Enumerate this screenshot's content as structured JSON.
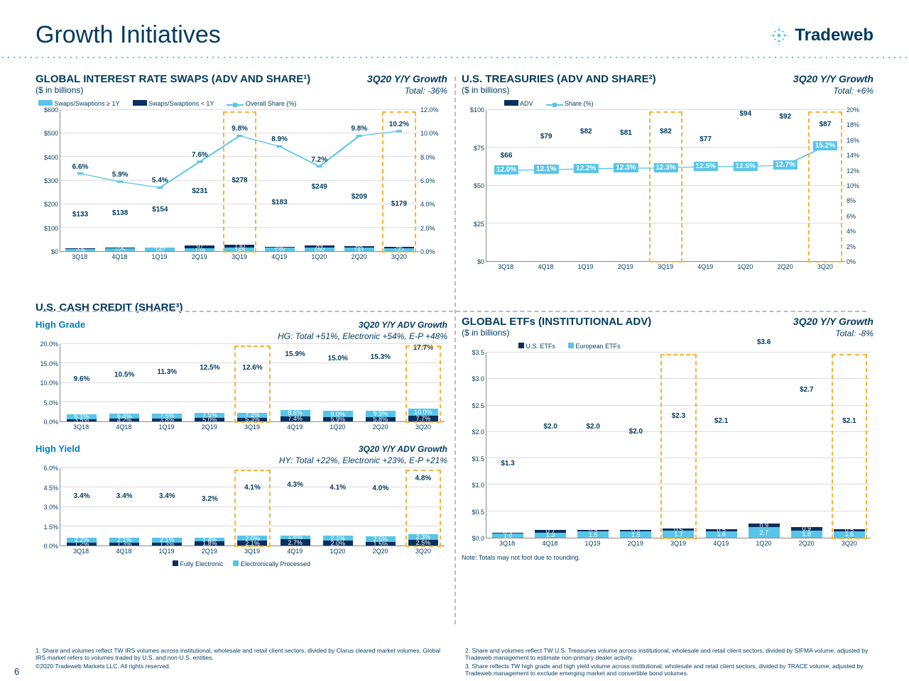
{
  "slide": {
    "title": "Growth Initiatives",
    "logo_text": "Tradeweb",
    "page_number": "6",
    "copyright": "©2020 Tradeweb Markets LLC. All rights reserved."
  },
  "colors": {
    "navy": "#0a2f5c",
    "cyan": "#58c5e8",
    "cyan_dark": "#2da8cc",
    "orange": "#f9b233",
    "text": "#003a5d"
  },
  "irs": {
    "title": "GLOBAL INTEREST RATE SWAPS (ADV AND SHARE¹)",
    "unit": "($ in billions)",
    "growth_label": "3Q20 Y/Y Growth",
    "growth_value": "Total: -36%",
    "legend": {
      "a": "Swaps/Swaptions ≥ 1Y",
      "b": "Swaps/Swaptions < 1Y",
      "c": "Overall Share (%)"
    },
    "yl": {
      "max": 600,
      "step": 100,
      "fmt": "$"
    },
    "yr": {
      "max": 12,
      "step": 2,
      "suffix": "%",
      "decimals": 1
    },
    "periods": [
      "3Q18",
      "4Q18",
      "1Q19",
      "2Q19",
      "3Q19",
      "4Q19",
      "1Q20",
      "2Q20",
      "3Q20"
    ],
    "cyan": [
      104,
      125,
      142,
      134,
      148,
      139,
      160,
      141,
      122
    ],
    "navy": [
      29,
      13,
      11,
      97,
      130,
      44,
      89,
      68,
      56
    ],
    "totals": [
      "$133",
      "$138",
      "$154",
      "$231",
      "$278",
      "$183",
      "$249",
      "$209",
      "$179"
    ],
    "share": [
      6.6,
      5.9,
      5.4,
      7.6,
      9.8,
      8.9,
      7.2,
      9.8,
      10.2
    ],
    "highlights": [
      4,
      8
    ]
  },
  "ust": {
    "title": "U.S. TREASURIES (ADV AND SHARE²)",
    "unit": "($ in billions)",
    "growth_label": "3Q20 Y/Y Growth",
    "growth_value": "Total: +6%",
    "legend": {
      "a": "ADV",
      "b": "Share (%)"
    },
    "yl": {
      "max": 100,
      "step": 25,
      "fmt": "$"
    },
    "yr": {
      "max": 20,
      "step": 2,
      "suffix": "%"
    },
    "periods": [
      "3Q18",
      "4Q18",
      "1Q19",
      "2Q19",
      "3Q19",
      "4Q19",
      "1Q20",
      "2Q20",
      "3Q20"
    ],
    "adv": [
      66,
      79,
      82,
      81,
      82,
      77,
      94,
      92,
      87
    ],
    "share": [
      12.0,
      12.1,
      12.2,
      12.3,
      12.3,
      12.5,
      12.5,
      12.7,
      15.2
    ],
    "highlights": [
      4,
      8
    ]
  },
  "credit": {
    "title": "U.S. CASH CREDIT (SHARE³)",
    "hg": {
      "label": "High Grade",
      "growth_label": "3Q20 Y/Y ADV Growth",
      "growth_value": "HG: Total +51%, Electronic +54%, E-P +48%",
      "ymax": 20,
      "ystep": 5,
      "navy": [
        3.5,
        4.2,
        3.8,
        5.0,
        5.3,
        7.4,
        5.9,
        5.8,
        7.7
      ],
      "cyan": [
        6.1,
        6.4,
        7.5,
        7.5,
        7.2,
        8.6,
        9.0,
        9.5,
        10.0
      ],
      "totals": [
        "9.6%",
        "10.5%",
        "11.3%",
        "12.5%",
        "12.6%",
        "15.9%",
        "15.0%",
        "15.3%",
        "17.7%"
      ]
    },
    "hy": {
      "label": "High Yield",
      "growth_label": "3Q20 Y/Y ADV Growth",
      "growth_value": "HY: Total +22%, Electronic +23%, E-P +21%",
      "ymax": 6,
      "ystep": 1.5,
      "navy": [
        1.2,
        1.3,
        1.3,
        1.8,
        2.1,
        2.7,
        2.0,
        1.5,
        2.5
      ],
      "cyan": [
        2.2,
        2.1,
        2.1,
        1.4,
        2.0,
        1.6,
        2.1,
        2.5,
        2.3
      ],
      "totals": [
        "3.4%",
        "3.4%",
        "3.4%",
        "3.2%",
        "4.1%",
        "4.3%",
        "4.1%",
        "4.0%",
        "4.8%"
      ]
    },
    "periods": [
      "3Q18",
      "4Q18",
      "1Q19",
      "2Q19",
      "3Q19",
      "4Q19",
      "1Q20",
      "2Q20",
      "3Q20"
    ],
    "highlights": [
      4,
      8
    ],
    "legend": {
      "a": "Fully Electronic",
      "b": "Electronically Processed"
    }
  },
  "etf": {
    "title": "GLOBAL ETFs (INSTITUTIONAL ADV)",
    "unit": "($ in billions)",
    "growth_label": "3Q20 Y/Y Growth",
    "growth_value": "Total: -8%",
    "legend": {
      "a": "U.S. ETFs",
      "b": "European ETFs"
    },
    "ymax": 3.5,
    "ystep": 0.5,
    "fmt": "$",
    "periods": [
      "3Q18",
      "4Q18",
      "1Q19",
      "2Q19",
      "3Q19",
      "4Q19",
      "1Q20",
      "2Q20",
      "3Q20"
    ],
    "cyan": [
      1.0,
      1.3,
      1.5,
      1.5,
      1.7,
      1.6,
      2.7,
      1.8,
      1.6
    ],
    "navy": [
      0.3,
      0.7,
      0.5,
      0.4,
      0.5,
      0.5,
      0.9,
      0.9,
      0.5
    ],
    "totals": [
      "$1.3",
      "$2.0",
      "$2.0",
      "$2.0",
      "$2.3",
      "$2.1",
      "$3.6",
      "$2.7",
      "$2.1"
    ],
    "highlights": [
      4,
      8
    ],
    "note": "Note: Totals may not foot due to rounding."
  },
  "footnotes": {
    "f1": "1. Share and volumes reflect TW IRS volumes across institutional, wholesale and retail client sectors, divided by Clarus cleared market volumes. Global IRS market refers to volumes traded by U.S. and non-U.S. entities.",
    "f2": "2. Share and volumes reflect TW U.S. Treasuries volume across institutional, wholesale and retail client sectors, divided by SIFMA volume, adjusted by Tradeweb management to estimate non-primary dealer activity.",
    "f3": "3. Share reflects TW high grade and high yield volume across institutional, wholesale and retail client sectors, divided by TRACE volume, adjusted by Tradeweb management to exclude emerging market and convertible bond volumes."
  }
}
